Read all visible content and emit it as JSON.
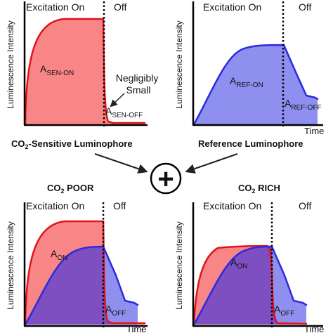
{
  "colors": {
    "sensitive_fill": "#f88686",
    "sensitive_edge": "#e2131a",
    "reference_fill": "#8f8fef",
    "reference_edge": "#2a2ae0",
    "overlap_fill": "#7d4fc0",
    "arrow": "#222222"
  },
  "panels": {
    "top_left": {
      "y_axis_label": "Luminescence Intensity",
      "phase_on": "Excitation On",
      "phase_off": "Off",
      "area_on": {
        "main": "A",
        "sub": "SEN-ON"
      },
      "area_off": {
        "main": "A",
        "sub": "SEN-OFF"
      },
      "note_line1": "Negligibly",
      "note_line2": "Small"
    },
    "top_right": {
      "y_axis_label": "Luminescence Intensity",
      "phase_on": "Excitation On",
      "phase_off": "Off",
      "area_on": {
        "main": "A",
        "sub": "REF-ON"
      },
      "area_off": {
        "main": "A",
        "sub": "REF-OFF"
      },
      "x_axis_label": "Time"
    },
    "bottom_left": {
      "y_axis_label": "Luminescence Intensity",
      "phase_on": "Excitation On",
      "phase_off": "Off",
      "area_on": {
        "main": "A",
        "sub": "ON"
      },
      "area_off": {
        "main": "A",
        "sub": "OFF"
      },
      "x_axis_label": "Time"
    },
    "bottom_right": {
      "y_axis_label": "Luminescence Intensity",
      "phase_on": "Excitation On",
      "phase_off": "Off",
      "area_on": {
        "main": "A",
        "sub": "ON"
      },
      "area_off": {
        "main": "A",
        "sub": "OFF"
      },
      "x_axis_label": "Time"
    }
  },
  "captions": {
    "sensitive": {
      "pre": "CO",
      "sub": "2",
      "post": "-Sensitive Luminophore"
    },
    "reference": "Reference Luminophore",
    "poor": {
      "pre": "CO",
      "sub": "2",
      "post": " POOR"
    },
    "rich": {
      "pre": "CO",
      "sub": "2",
      "post": " RICH"
    }
  },
  "combine_symbol": "+"
}
